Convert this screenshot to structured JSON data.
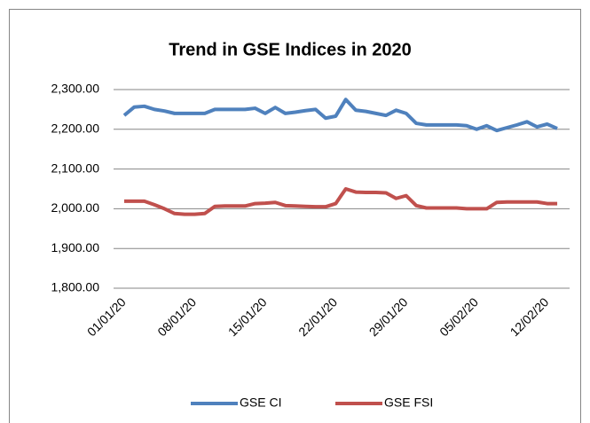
{
  "chart_data": {
    "type": "line",
    "title": "Trend in GSE Indices in 2020",
    "categories": [
      "01/01/20",
      null,
      null,
      null,
      null,
      null,
      null,
      "08/01/20",
      null,
      null,
      null,
      null,
      null,
      null,
      "15/01/20",
      null,
      null,
      null,
      null,
      null,
      null,
      "22/01/20",
      null,
      null,
      null,
      null,
      null,
      null,
      "29/01/20",
      null,
      null,
      null,
      null,
      null,
      null,
      "05/02/20",
      null,
      null,
      null,
      null,
      null,
      null,
      "12/02/20",
      null
    ],
    "series": [
      {
        "name": "GSE CI",
        "color": "#4f81bd",
        "values": [
          2235,
          2256,
          2258,
          2250,
          2246,
          2240,
          2240,
          2240,
          2240,
          2250,
          2250,
          2250,
          2250,
          2253,
          2240,
          2255,
          2240,
          2243,
          2247,
          2250,
          2228,
          2233,
          2275,
          2248,
          2245,
          2240,
          2235,
          2248,
          2240,
          2215,
          2211,
          2211,
          2211,
          2211,
          2209,
          2200,
          2209,
          2197,
          2204,
          2211,
          2219,
          2206,
          2213,
          2202
        ]
      },
      {
        "name": "GSE FSI",
        "color": "#c0504d",
        "values": [
          2019,
          2019,
          2019,
          2010,
          2000,
          1988,
          1986,
          1986,
          1988,
          2006,
          2007,
          2007,
          2007,
          2013,
          2014,
          2016,
          2008,
          2007,
          2006,
          2005,
          2005,
          2013,
          2050,
          2042,
          2041,
          2041,
          2040,
          2026,
          2033,
          2008,
          2002,
          2002,
          2002,
          2002,
          2000,
          2000,
          2000,
          2016,
          2017,
          2017,
          2017,
          2017,
          2013,
          2013
        ]
      }
    ],
    "ylim": [
      1800,
      2300
    ],
    "yticks": [
      {
        "value": 1800,
        "label": "1,800.00"
      },
      {
        "value": 1900,
        "label": "1,900.00"
      },
      {
        "value": 2000,
        "label": "2,000.00"
      },
      {
        "value": 2100,
        "label": "2,100.00"
      },
      {
        "value": 2200,
        "label": "2,200.00"
      },
      {
        "value": 2300,
        "label": "2,300.00"
      }
    ],
    "grid": true,
    "legend": "bottom"
  }
}
